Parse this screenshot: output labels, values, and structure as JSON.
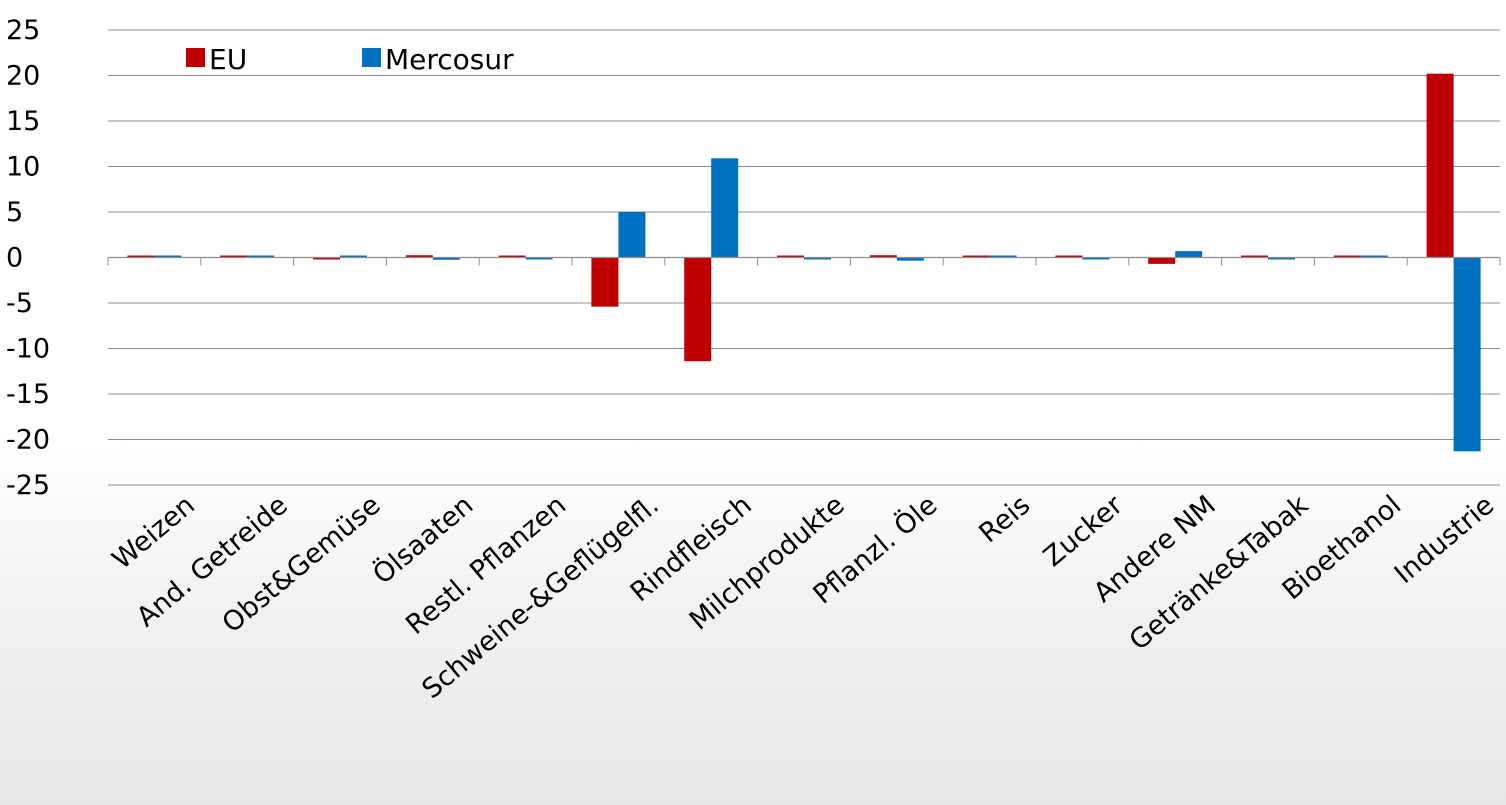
{
  "chart_data": {
    "type": "bar",
    "categories": [
      "Weizen",
      "And. Getreide",
      "Obst&Gemüse",
      "Ölsaaten",
      "Restl. Pflanzen",
      "Schweine-&Geflügelfl.",
      "Rindfleisch",
      "Milchprodukte",
      "Pflanzl. Öle",
      "Reis",
      "Zucker",
      "Andere NM",
      "Getränke&Tabak",
      "Bioethanol",
      "Industrie"
    ],
    "series": [
      {
        "name": "EU",
        "color": "#c00000",
        "values": [
          0.05,
          0.05,
          -0.1,
          0.25,
          0.2,
          -5.4,
          -11.4,
          0.05,
          0.25,
          0.05,
          0.05,
          -0.7,
          0.1,
          0.05,
          20.2
        ]
      },
      {
        "name": "Mercosur",
        "color": "#0070c0",
        "values": [
          0.0,
          0.0,
          0.05,
          -0.25,
          -0.2,
          5.0,
          10.9,
          -0.05,
          -0.35,
          0.0,
          -0.05,
          0.7,
          -0.15,
          0.0,
          -21.3
        ]
      }
    ],
    "y_ticks": [
      "25",
      "20",
      "15",
      "10",
      "5",
      "0",
      "-5",
      "-10",
      "-15",
      "-20",
      "-25"
    ],
    "ylim": [
      -25,
      25
    ],
    "grid": true,
    "legend": "top-left"
  }
}
